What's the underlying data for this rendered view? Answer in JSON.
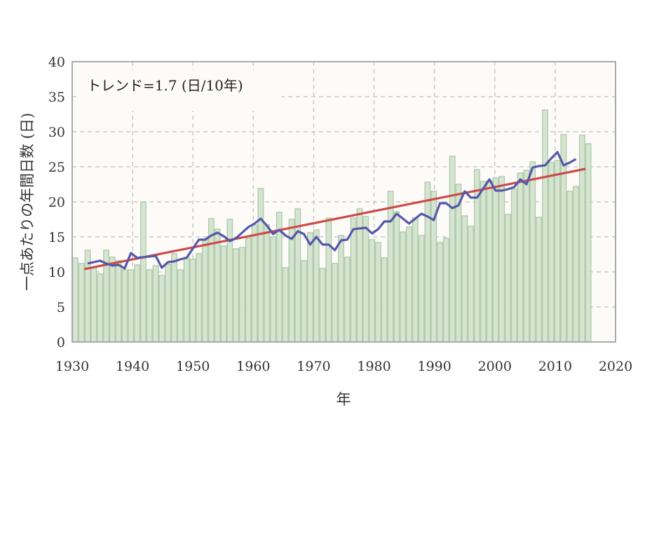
{
  "chart_data": {
    "type": "bar",
    "title": "",
    "xlabel": "年",
    "ylabel": "一点あたりの年間日数 (日)",
    "annotation": "トレンド=1.7 (日/10年)",
    "xlim": [
      1930,
      2020
    ],
    "ylim": [
      0,
      40
    ],
    "x_ticks": [
      "1930",
      "1940",
      "1950",
      "1960",
      "1970",
      "1980",
      "1990",
      "2000",
      "2010",
      "2020"
    ],
    "y_ticks": [
      "0",
      "5",
      "10",
      "15",
      "20",
      "25",
      "30",
      "35",
      "40"
    ],
    "grid": true,
    "colors": {
      "bar_fill": "#d5e6d0",
      "bar_stroke": "#b3c9ad",
      "moving_average": "#5558aa",
      "trend": "#cc4b4b",
      "plot_bg": "#fcfbf8",
      "grid": "#c9c9c9",
      "frame": "#aaaaaa"
    },
    "bars": [
      12.0,
      11.2,
      13.1,
      10.6,
      9.7,
      13.1,
      12.1,
      11.6,
      10.3,
      10.3,
      11.0,
      20.0,
      10.3,
      10.9,
      9.5,
      11.1,
      12.6,
      10.3,
      12.1,
      11.8,
      12.6,
      14.6,
      17.6,
      16.1,
      13.7,
      17.5,
      13.3,
      13.5,
      14.8,
      16.7,
      21.9,
      16.7,
      15.0,
      18.5,
      10.6,
      17.5,
      19.0,
      11.6,
      15.6,
      16.0,
      10.5,
      17.7,
      11.2,
      15.2,
      12.1,
      17.7,
      19.0,
      17.9,
      14.6,
      14.2,
      12.0,
      21.5,
      18.6,
      15.7,
      16.4,
      17.7,
      15.2,
      22.8,
      21.5,
      14.2,
      14.8,
      26.5,
      22.5,
      18.0,
      16.5,
      24.6,
      22.9,
      23.0,
      23.4,
      23.6,
      18.2,
      21.8,
      24.1,
      24.5,
      25.7,
      17.8,
      33.1,
      25.6,
      25.9,
      29.6,
      21.5,
      22.2,
      29.5,
      28.3
    ],
    "moving_average": [
      11.2,
      11.4,
      11.6,
      11.2,
      10.9,
      11.0,
      10.5,
      12.7,
      12.0,
      12.1,
      12.2,
      12.3,
      10.6,
      11.4,
      11.5,
      11.8,
      12.0,
      13.3,
      14.6,
      14.6,
      15.2,
      15.6,
      15.1,
      14.4,
      14.8,
      15.6,
      16.4,
      16.9,
      17.6,
      16.6,
      15.4,
      16.0,
      15.2,
      14.7,
      15.8,
      15.4,
      13.9,
      15.0,
      13.9,
      13.9,
      13.1,
      14.5,
      14.6,
      16.1,
      16.2,
      16.3,
      15.5,
      16.1,
      17.2,
      17.2,
      18.3,
      17.6,
      16.9,
      17.6,
      18.3,
      17.9,
      17.4,
      19.8,
      19.8,
      19.1,
      19.5,
      21.5,
      20.6,
      20.6,
      21.9,
      23.2,
      21.6,
      21.6,
      21.8,
      22.1,
      23.2,
      22.5,
      24.9,
      25.1,
      25.2,
      26.2,
      27.1,
      25.2,
      25.6,
      26.1
    ],
    "trend": {
      "x": [
        1932,
        2015
      ],
      "y": [
        10.4,
        24.7
      ]
    }
  }
}
